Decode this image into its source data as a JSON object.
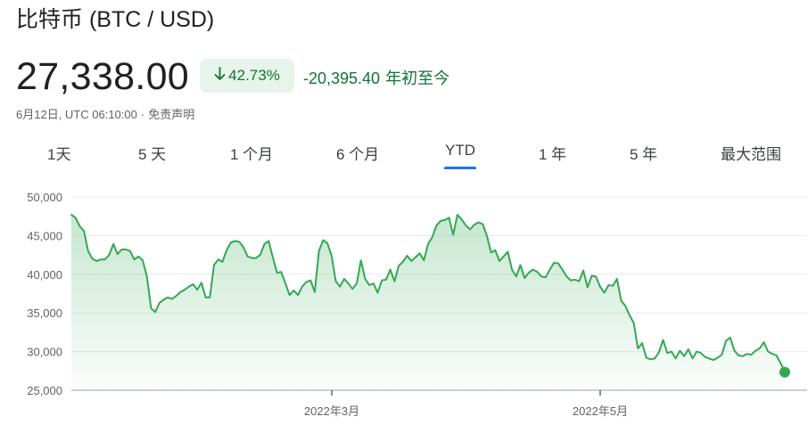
{
  "header": {
    "title": "比特币 (BTC / USD)",
    "price": "27,338.00",
    "change_badge": {
      "arrow_icon": "arrow-down-icon",
      "text": "42.73%"
    },
    "change_amount": "-20,395.40",
    "change_period": "年初至今",
    "timestamp": "6月12日, UTC 06:10:00",
    "disclaimer": "免责声明"
  },
  "tabs": [
    {
      "label": "1天",
      "active": false
    },
    {
      "label": "5 天",
      "active": false
    },
    {
      "label": "1 个月",
      "active": false
    },
    {
      "label": "6 个月",
      "active": false
    },
    {
      "label": "YTD",
      "active": true
    },
    {
      "label": "1 年",
      "active": false
    },
    {
      "label": "5 年",
      "active": false
    },
    {
      "label": "最大范围",
      "active": false
    }
  ],
  "colors": {
    "positive": "#137333",
    "line": "#34a853",
    "accent": "#1a73e8",
    "badge_bg": "#e6f4ea"
  },
  "chart_data": {
    "type": "area",
    "title": "",
    "xlabel": "",
    "ylabel": "",
    "ylim": [
      25000,
      50000
    ],
    "y_ticks": [
      "50,000",
      "45,000",
      "40,000",
      "35,000",
      "30,000",
      "25,000"
    ],
    "x_ticks": [
      "2022年3月",
      "2022年5月"
    ],
    "grid": true,
    "series": [
      {
        "values": [
          47700,
          47300,
          46200,
          45600,
          43000,
          42000,
          41700,
          41900,
          41900,
          42500,
          43900,
          42600,
          43200,
          43200,
          43000,
          41900,
          42300,
          41800,
          39700,
          35600,
          35100,
          36300,
          36700,
          37000,
          36800,
          37200,
          37700,
          38000,
          38400,
          38700,
          38000,
          38900,
          37000,
          37000,
          41200,
          41900,
          41600,
          43100,
          44100,
          44300,
          44200,
          43500,
          42300,
          42100,
          42100,
          42500,
          43900,
          44300,
          42200,
          40200,
          40300,
          38800,
          37300,
          37900,
          37300,
          38400,
          39000,
          39200,
          37700,
          43000,
          44400,
          44000,
          42400,
          39100,
          38400,
          39400,
          38800,
          38100,
          38800,
          41800,
          39400,
          38600,
          38800,
          37600,
          39200,
          39300,
          40600,
          39100,
          41100,
          41600,
          42400,
          41700,
          42200,
          42700,
          41800,
          43900,
          44800,
          46300,
          46900,
          47000,
          47300,
          45100,
          47700,
          47100,
          46300,
          45800,
          46400,
          46700,
          46500,
          45000,
          42800,
          43100,
          41700,
          42300,
          42900,
          40600,
          39700,
          41200,
          39500,
          40200,
          40600,
          40300,
          39700,
          39600,
          40600,
          41500,
          41400,
          40600,
          39700,
          39200,
          39300,
          39100,
          40500,
          38300,
          39800,
          39700,
          38400,
          37600,
          38600,
          38500,
          39400,
          36600,
          35900,
          34700,
          33700,
          30400,
          31100,
          29200,
          29000,
          29100,
          29900,
          31500,
          29800,
          30000,
          29100,
          30100,
          29400,
          30300,
          29100,
          30000,
          29800,
          29300,
          29100,
          28900,
          29200,
          29600,
          31400,
          31800,
          30100,
          29500,
          29400,
          29700,
          29600,
          30100,
          30400,
          31200,
          30000,
          29700,
          29500,
          28500,
          27338
        ]
      }
    ]
  }
}
